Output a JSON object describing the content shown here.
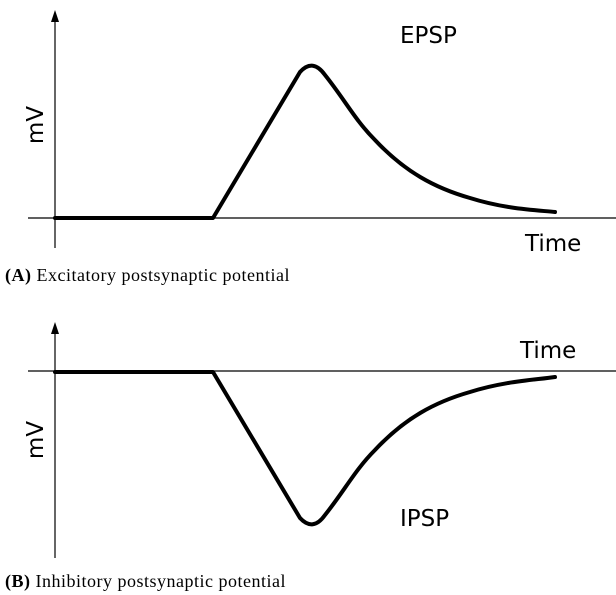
{
  "panels": [
    {
      "label": "EPSP",
      "x_label": "Time",
      "y_label": "mV",
      "caption_tag": "(A)",
      "caption": "Excitatory postsynaptic potential"
    },
    {
      "label": "IPSP",
      "x_label": "Time",
      "y_label": "mV",
      "caption_tag": "(B)",
      "caption": "Inhibitory postsynaptic potential"
    }
  ]
}
